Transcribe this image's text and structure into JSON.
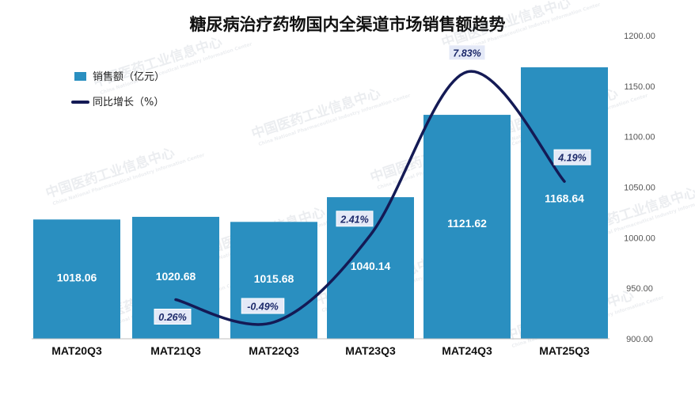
{
  "chart_data": {
    "type": "bar",
    "title": "糖尿病治疗药物国内全渠道市场销售额趋势",
    "categories": [
      "MAT20Q3",
      "MAT21Q3",
      "MAT22Q3",
      "MAT23Q3",
      "MAT24Q3",
      "MAT25Q3"
    ],
    "series": [
      {
        "name": "销售额（亿元）",
        "type": "bar",
        "axis": "right",
        "values": [
          1018.06,
          1020.68,
          1015.68,
          1040.14,
          1121.62,
          1168.64
        ],
        "labels": [
          "1018.06",
          "1020.68",
          "1015.68",
          "1040.14",
          "1121.62",
          "1168.64"
        ]
      },
      {
        "name": "同比增长（%）",
        "type": "line",
        "smooth": true,
        "values": [
          null,
          0.26,
          -0.49,
          2.41,
          7.83,
          4.19
        ],
        "labels": [
          "",
          "0.26%",
          "-0.49%",
          "2.41%",
          "7.83%",
          "4.19%"
        ]
      }
    ],
    "y_right": {
      "ylim": [
        900,
        1200
      ],
      "ticks": [
        "900.00",
        "950.00",
        "1000.00",
        "1050.00",
        "1100.00",
        "1150.00",
        "1200.00"
      ]
    },
    "legend_position": "top-left",
    "grid": false,
    "colors": {
      "bar": "#2a8fc0",
      "line": "#141a55",
      "label_box": "#e4e9f7"
    }
  },
  "watermark": {
    "text": "中国医药工业信息中心",
    "subtext": "China National Pharmaceutical Industry Information Center"
  }
}
